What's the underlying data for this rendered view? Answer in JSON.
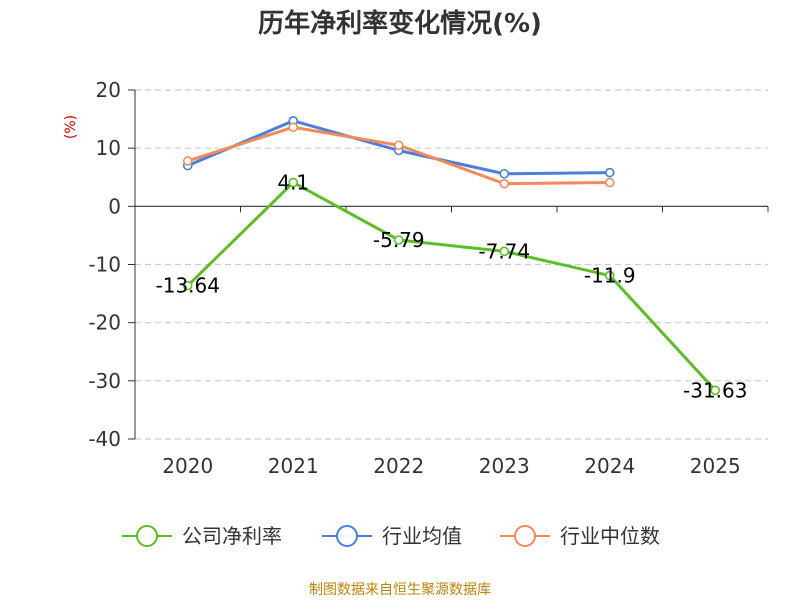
{
  "chart_data": {
    "type": "line",
    "title": "历年净利率变化情况(%)",
    "ylabel": "(%)",
    "xlabel": "",
    "categories": [
      "2020",
      "2021",
      "2022",
      "2023",
      "2024",
      "2025"
    ],
    "ylim": [
      -40,
      20
    ],
    "yticks": [
      20,
      10,
      0,
      -10,
      -20,
      -30,
      -40
    ],
    "grid": true,
    "legend_position": "bottom",
    "series": [
      {
        "name": "公司净利率",
        "color": "#5cbf2a",
        "values": [
          -13.64,
          4.1,
          -5.79,
          -7.74,
          -11.9,
          -31.63
        ],
        "labels": [
          "-13.64",
          "4.1",
          "-5.79",
          "-7.74",
          "-11.9",
          "-31.63"
        ]
      },
      {
        "name": "行业均值",
        "color": "#4a7fdb",
        "values": [
          7.0,
          14.7,
          9.6,
          5.6,
          5.8,
          null
        ]
      },
      {
        "name": "行业中位数",
        "color": "#f28a5a",
        "values": [
          7.8,
          13.6,
          10.5,
          3.9,
          4.1,
          null
        ]
      }
    ],
    "source": "制图数据来自恒生聚源数据库"
  }
}
